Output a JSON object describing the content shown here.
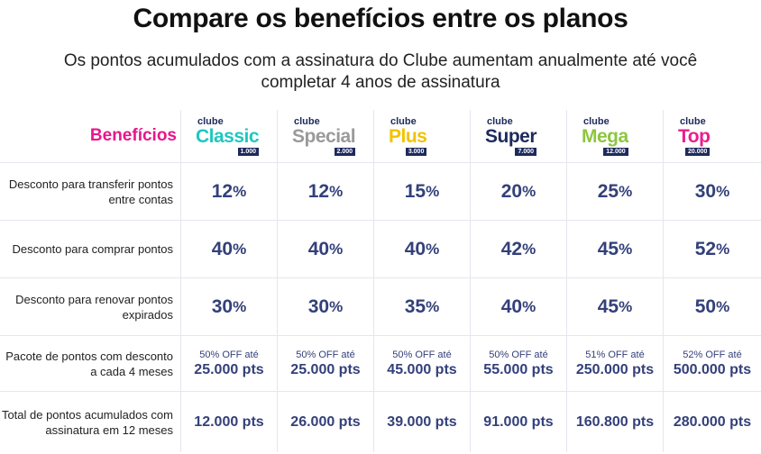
{
  "title": "Compare os benefícios entre os planos",
  "subtitle_line1": "Os pontos acumulados com a assinatura do Clube aumentam anualmente até você",
  "subtitle_line2": "completar 4 anos de assinatura",
  "benefits_header": "Benefícios",
  "plans": [
    {
      "prefix": "clube",
      "name": "Classic",
      "badge": "1.000",
      "color": "#1fc7c0"
    },
    {
      "prefix": "clube",
      "name": "Special",
      "badge": "2.000",
      "color": "#9a9a9a"
    },
    {
      "prefix": "clube",
      "name": "Plus",
      "badge": "3.000",
      "color": "#f2c200"
    },
    {
      "prefix": "clube",
      "name": "Super",
      "badge": "7.000",
      "color": "#1d2a5c"
    },
    {
      "prefix": "clube",
      "name": "Mega",
      "badge": "12.000",
      "color": "#8dc63f"
    },
    {
      "prefix": "clube",
      "name": "Top",
      "badge": "20.000",
      "color": "#ec1d8c"
    }
  ],
  "rows": {
    "transfer": {
      "label": "Desconto para transferir pontos entre contas",
      "values": [
        "12",
        "12",
        "15",
        "20",
        "25",
        "30"
      ]
    },
    "buy": {
      "label": "Desconto para comprar pontos",
      "values": [
        "40",
        "40",
        "40",
        "42",
        "45",
        "52"
      ]
    },
    "renew": {
      "label": "Desconto para renovar pontos expirados",
      "values": [
        "30",
        "30",
        "35",
        "40",
        "45",
        "50"
      ]
    },
    "pack": {
      "label": "Pacote de pontos com desconto a cada 4 meses",
      "offs": [
        "50% OFF até",
        "50% OFF até",
        "50% OFF até",
        "50% OFF até",
        "51% OFF até",
        "52% OFF até"
      ],
      "values": [
        "25.000 pts",
        "25.000 pts",
        "45.000 pts",
        "55.000 pts",
        "250.000 pts",
        "500.000 pts"
      ]
    },
    "total": {
      "label": "Total de pontos acumulados com assinatura em 12 meses",
      "values": [
        "12.000 pts",
        "26.000 pts",
        "39.000 pts",
        "91.000 pts",
        "160.800 pts",
        "280.000 pts"
      ]
    }
  },
  "percent_symbol": "%"
}
